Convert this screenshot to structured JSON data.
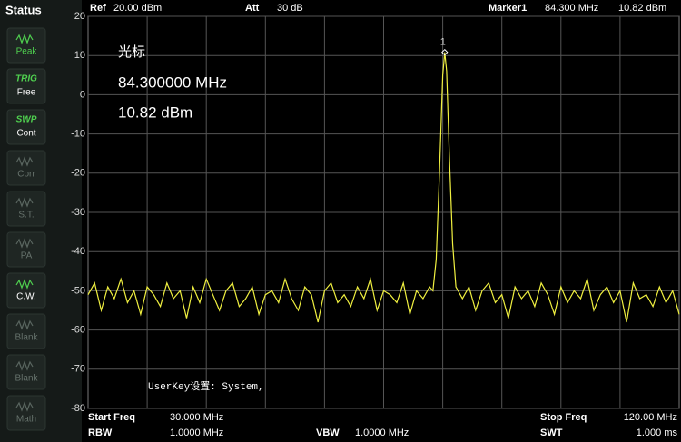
{
  "sidebar": {
    "title": "Status",
    "items": [
      {
        "top": "",
        "label": "Peak"
      },
      {
        "top": "TRIG",
        "label": "Free"
      },
      {
        "top": "SWP",
        "label": "Cont"
      },
      {
        "top": "",
        "label": "Corr"
      },
      {
        "top": "",
        "label": "S.T."
      },
      {
        "top": "",
        "label": "PA"
      },
      {
        "top": "",
        "label": "C.W."
      },
      {
        "top": "",
        "label": "Blank"
      },
      {
        "top": "",
        "label": "Blank"
      },
      {
        "top": "",
        "label": "Math"
      }
    ]
  },
  "header": {
    "ref_label": "Ref",
    "ref_value": "20.00 dBm",
    "att_label": "Att",
    "att_value": "30 dB",
    "marker_label": "Marker1",
    "marker_freq": "84.300 MHz",
    "marker_level": "10.82 dBm"
  },
  "readout": {
    "title": "光标",
    "freq": "84.300000 MHz",
    "level": "10.82 dBm"
  },
  "annotation": "UserKey设置:   System,",
  "footer": {
    "start_label": "Start Freq",
    "start_value": "30.000 MHz",
    "rbw_label": "RBW",
    "rbw_value": "1.0000 MHz",
    "vbw_label": "VBW",
    "vbw_value": "1.0000 MHz",
    "stop_label": "Stop Freq",
    "stop_value": "120.00 MHz",
    "swt_label": "SWT",
    "swt_value": "1.000 ms"
  },
  "chart_data": {
    "type": "line",
    "marker_label": "1",
    "color": "#f0f040",
    "xlim": [
      30,
      120
    ],
    "ylim": [
      -80,
      20
    ],
    "yticks": [
      20,
      10,
      0,
      -10,
      -20,
      -30,
      -40,
      -50,
      -60,
      -70,
      -80
    ],
    "grid": true,
    "x": [
      30,
      31,
      32,
      33,
      34,
      35,
      36,
      37,
      38,
      39,
      40,
      41,
      42,
      43,
      44,
      45,
      46,
      47,
      48,
      49,
      50,
      51,
      52,
      53,
      54,
      55,
      56,
      57,
      58,
      59,
      60,
      61,
      62,
      63,
      64,
      65,
      66,
      67,
      68,
      69,
      70,
      71,
      72,
      73,
      74,
      75,
      76,
      77,
      78,
      79,
      80,
      81,
      82,
      82.5,
      83,
      83.5,
      84,
      84.3,
      84.6,
      85,
      85.5,
      86,
      87,
      88,
      89,
      90,
      91,
      92,
      93,
      94,
      95,
      96,
      97,
      98,
      99,
      100,
      101,
      102,
      103,
      104,
      105,
      106,
      107,
      108,
      109,
      110,
      111,
      112,
      113,
      114,
      115,
      116,
      117,
      118,
      119,
      120
    ],
    "values": [
      -51,
      -48,
      -55,
      -49,
      -52,
      -47,
      -53,
      -50,
      -56,
      -49,
      -51,
      -54,
      -48,
      -52,
      -50,
      -57,
      -49,
      -53,
      -47,
      -51,
      -55,
      -50,
      -48,
      -54,
      -52,
      -49,
      -56,
      -51,
      -50,
      -53,
      -47,
      -52,
      -55,
      -49,
      -51,
      -58,
      -50,
      -48,
      -53,
      -51,
      -54,
      -49,
      -52,
      -47,
      -55,
      -50,
      -51,
      -53,
      -48,
      -56,
      -50,
      -52,
      -49,
      -50,
      -42,
      -20,
      5,
      10.82,
      6,
      -15,
      -38,
      -49,
      -52,
      -49,
      -55,
      -50,
      -48,
      -53,
      -51,
      -57,
      -49,
      -52,
      -50,
      -54,
      -48,
      -51,
      -56,
      -49,
      -53,
      -50,
      -52,
      -47,
      -55,
      -51,
      -49,
      -53,
      -50,
      -58,
      -48,
      -52,
      -51,
      -54,
      -49,
      -53,
      -50,
      -56
    ]
  }
}
